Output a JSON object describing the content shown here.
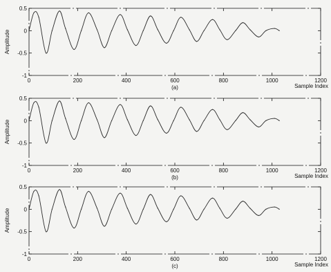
{
  "chart_data": [
    {
      "type": "line",
      "panel_label": "(a)",
      "xlabel": "Sample Index",
      "ylabel": "Amplitude",
      "xlim": [
        0,
        1200
      ],
      "ylim": [
        -1,
        0.5
      ],
      "xticks": [
        0,
        200,
        400,
        600,
        800,
        1000,
        1200
      ],
      "yticks": [
        -1,
        -0.5,
        0,
        0.5
      ],
      "x_tick_labels": [
        "0",
        "200",
        "400",
        "600",
        "800",
        "1000",
        "1200"
      ],
      "y_tick_labels": [
        "-1",
        "-0.5",
        "0",
        "0.5"
      ],
      "grid": false,
      "series": [
        {
          "x": [
            0,
            20,
            40,
            70,
            95,
            125,
            150,
            185,
            215,
            245,
            280,
            310,
            340,
            375,
            405,
            440,
            470,
            500,
            530,
            565,
            595,
            625,
            660,
            690,
            720,
            755,
            785,
            815,
            850,
            880,
            910,
            945,
            975,
            1010,
            1030
          ],
          "y": [
            0.0,
            0.4,
            0.3,
            -0.5,
            0.0,
            0.44,
            0.05,
            -0.42,
            0.0,
            0.4,
            0.02,
            -0.38,
            0.0,
            0.36,
            0.02,
            -0.33,
            0.0,
            0.33,
            0.02,
            -0.28,
            0.0,
            0.3,
            0.02,
            -0.24,
            0.0,
            0.25,
            0.02,
            -0.2,
            0.0,
            0.18,
            0.02,
            -0.14,
            0.0,
            0.05,
            0.0
          ]
        }
      ]
    },
    {
      "type": "line",
      "panel_label": "(b)",
      "xlabel": "Sample Index",
      "ylabel": "Amplitude",
      "xlim": [
        0,
        1200
      ],
      "ylim": [
        -1,
        0.5
      ],
      "xticks": [
        0,
        200,
        400,
        600,
        800,
        1000,
        1200
      ],
      "yticks": [
        -1,
        -0.5,
        0,
        0.5
      ],
      "x_tick_labels": [
        "0",
        "200",
        "400",
        "600",
        "800",
        "1000",
        "1200"
      ],
      "y_tick_labels": [
        "-1",
        "-0.5",
        "0",
        "0.5"
      ],
      "grid": false,
      "series": [
        {
          "x": [
            0,
            20,
            40,
            70,
            95,
            125,
            150,
            185,
            215,
            245,
            280,
            310,
            340,
            375,
            405,
            440,
            470,
            500,
            530,
            565,
            595,
            625,
            660,
            690,
            720,
            755,
            785,
            815,
            850,
            880,
            910,
            945,
            975,
            1010,
            1030
          ],
          "y": [
            0.0,
            0.4,
            0.3,
            -0.5,
            0.0,
            0.44,
            0.05,
            -0.42,
            0.0,
            0.4,
            0.02,
            -0.38,
            0.0,
            0.36,
            0.02,
            -0.33,
            0.0,
            0.33,
            0.02,
            -0.28,
            0.0,
            0.3,
            0.02,
            -0.24,
            0.0,
            0.25,
            0.02,
            -0.2,
            0.0,
            0.18,
            0.02,
            -0.14,
            0.0,
            0.05,
            0.0
          ]
        }
      ]
    },
    {
      "type": "line",
      "panel_label": "(c)",
      "xlabel": "Sample Index",
      "ylabel": "Amplitude",
      "xlim": [
        0,
        1200
      ],
      "ylim": [
        -1,
        0.5
      ],
      "xticks": [
        0,
        200,
        400,
        600,
        800,
        1000,
        1200
      ],
      "yticks": [
        -1,
        -0.5,
        0,
        0.5
      ],
      "x_tick_labels": [
        "0",
        "200",
        "400",
        "600",
        "800",
        "1000",
        "1200"
      ],
      "y_tick_labels": [
        "-1",
        "-0.5",
        "0",
        "0.5"
      ],
      "grid": false,
      "series": [
        {
          "x": [
            0,
            20,
            40,
            70,
            95,
            125,
            150,
            185,
            215,
            245,
            280,
            310,
            340,
            375,
            405,
            440,
            470,
            500,
            530,
            565,
            595,
            625,
            660,
            690,
            720,
            755,
            785,
            815,
            850,
            880,
            910,
            945,
            975,
            1010,
            1030
          ],
          "y": [
            0.0,
            0.4,
            0.3,
            -0.5,
            0.0,
            0.44,
            0.05,
            -0.42,
            0.0,
            0.4,
            0.02,
            -0.38,
            0.0,
            0.36,
            0.02,
            -0.33,
            0.0,
            0.33,
            0.02,
            -0.28,
            0.0,
            0.3,
            0.02,
            -0.24,
            0.0,
            0.25,
            0.02,
            -0.2,
            0.0,
            0.18,
            0.02,
            -0.14,
            0.0,
            0.05,
            0.0
          ]
        }
      ]
    }
  ],
  "colors": {
    "background": "#f4f4f2",
    "ink": "#111111",
    "line": "#2a2a2a"
  }
}
